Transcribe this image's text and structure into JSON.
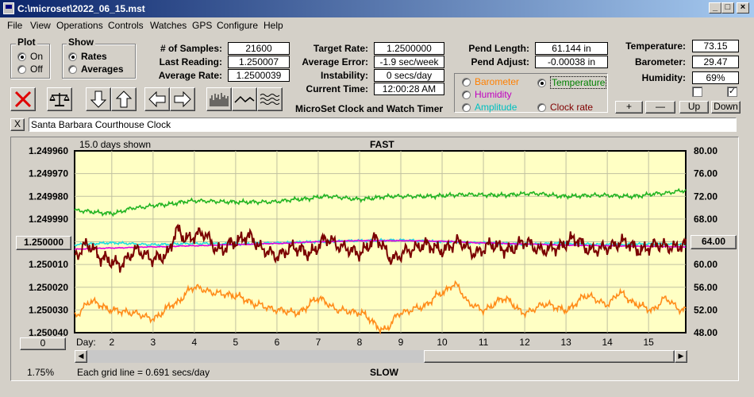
{
  "window": {
    "title": "C:\\microset\\2022_06_15.mst"
  },
  "menu": [
    "File",
    "View",
    "Operations",
    "Controls",
    "Watches",
    "GPS",
    "Configure",
    "Help"
  ],
  "plot_group": {
    "title": "Plot",
    "on": "On",
    "off": "Off",
    "selected": "On"
  },
  "show_group": {
    "title": "Show",
    "rates": "Rates",
    "averages": "Averages",
    "selected": "Rates"
  },
  "stats": {
    "samples_label": "# of Samples:",
    "samples": "21600",
    "last_reading_label": "Last Reading:",
    "last_reading": "1.250007",
    "average_rate_label": "Average Rate:",
    "average_rate": "1.2500039",
    "target_rate_label": "Target Rate:",
    "target_rate": "1.2500000",
    "average_error_label": "Average Error:",
    "average_error": "-1.9 sec/week",
    "instability_label": "Instability:",
    "instability": "0 secs/day",
    "current_time_label": "Current Time:",
    "current_time": "12:00:28 AM",
    "pend_length_label": "Pend Length:",
    "pend_length": "61.144 in",
    "pend_adjust_label": "Pend Adjust:",
    "pend_adjust": "-0.00038 in",
    "temperature_label": "Temperature:",
    "temperature": "73.15",
    "barometer_label": "Barometer:",
    "barometer": "29.47",
    "humidity_label": "Humidity:",
    "humidity": "69%"
  },
  "app_name": "MicroSet Clock and Watch Timer",
  "overlay": {
    "barometer": "Barometer",
    "temperature": "Temperature",
    "humidity": "Humidity",
    "amplitude": "Amplitude",
    "clock_rate": "Clock rate",
    "selected": "Temperature",
    "colors": {
      "barometer": "#ff8000",
      "temperature": "#008000",
      "humidity": "#c000c0",
      "amplitude": "#00c0c0",
      "clock_rate": "#800000"
    }
  },
  "scale_buttons": {
    "plus": "+",
    "minus": "—",
    "up": "Up",
    "down": "Down"
  },
  "checkboxes": {
    "left": false,
    "right": true
  },
  "close_label": "X",
  "description": "Santa Barbara Courthouse Clock",
  "plot": {
    "days_shown": "15.0 days shown",
    "top_label": "FAST",
    "bottom_label": "SLOW",
    "center_button": "1.250000",
    "right_button": "64.00",
    "left_bottom_button": "0",
    "percent": "1.75%",
    "grid_note": "Each grid line = 0.691 secs/day",
    "day_label": "Day:"
  },
  "chart_data": {
    "type": "line",
    "x_range_days": [
      1.1,
      15.9
    ],
    "left_axis": {
      "ticks": [
        "1.249960",
        "1.249970",
        "1.249980",
        "1.249990",
        "1.250000",
        "1.250010",
        "1.250020",
        "1.250030",
        "1.250040"
      ],
      "range": [
        1.24996,
        1.25004
      ]
    },
    "right_axis": {
      "ticks": [
        "80.00",
        "76.00",
        "72.00",
        "68.00",
        "64.00",
        "60.00",
        "56.00",
        "52.00",
        "48.00"
      ],
      "range": [
        48,
        80
      ]
    },
    "x_ticks": [
      "2",
      "3",
      "4",
      "5",
      "6",
      "7",
      "8",
      "9",
      "10",
      "11",
      "12",
      "13",
      "14",
      "15"
    ],
    "series": [
      {
        "key": "temperature",
        "axis": "right",
        "color": "#22b422",
        "x": [
          1.1,
          2,
          2.6,
          3.2,
          4,
          5,
          5.8,
          6.6,
          7.2,
          8,
          8.8,
          9.6,
          10.6,
          11.4,
          12.2,
          13,
          13.8,
          14.6,
          15.3,
          15.9
        ],
        "values": [
          69.5,
          69,
          70,
          70.5,
          71.2,
          71,
          71,
          71.5,
          72,
          71.5,
          72,
          72,
          72.3,
          72.2,
          72.5,
          72,
          72.2,
          72,
          72.5,
          73
        ]
      },
      {
        "key": "barometer",
        "axis": "right",
        "color": "#ff8c1a",
        "x": [
          1.1,
          1.5,
          2,
          2.5,
          3,
          3.5,
          4,
          4.5,
          5,
          5.5,
          6,
          6.5,
          7,
          7.5,
          8,
          8.6,
          9,
          9.5,
          10,
          10.3,
          10.7,
          11,
          11.5,
          12,
          12.5,
          13,
          13.5,
          14,
          14.3,
          14.7,
          15.1,
          15.4,
          15.8
        ],
        "values": [
          51,
          53.5,
          52,
          51.5,
          50.5,
          53,
          56,
          55,
          54.5,
          53,
          52,
          51.5,
          54,
          52,
          51.5,
          48.5,
          51.5,
          52.5,
          55,
          56.5,
          53,
          52,
          54,
          51.5,
          53,
          52,
          54.5,
          53,
          55,
          53,
          52,
          54,
          52
        ]
      },
      {
        "key": "amplitude",
        "axis": "right",
        "color": "#20e0e0",
        "x": [
          1.1,
          2,
          3,
          4,
          5,
          6,
          7,
          8,
          9,
          10,
          11,
          12,
          13,
          14,
          15,
          15.9
        ],
        "values": [
          63.5,
          63.8,
          63.5,
          63.7,
          63.6,
          63.8,
          64,
          64.2,
          64.3,
          64,
          63.8,
          63.6,
          63.7,
          63.5,
          63.6,
          63.5
        ]
      },
      {
        "key": "humidity",
        "axis": "right",
        "color": "#e000e0",
        "x": [
          1.1,
          2,
          3,
          4,
          5,
          6,
          7,
          8,
          9,
          10,
          11,
          12,
          13,
          14,
          15,
          15.9
        ],
        "values": [
          62.7,
          62.9,
          63.1,
          63.3,
          63.5,
          63.7,
          64,
          64.2,
          64.2,
          64.1,
          63.8,
          63.6,
          63.4,
          63.3,
          63.2,
          63.1
        ]
      },
      {
        "key": "clock_rate",
        "axis": "right",
        "color": "#7a0000",
        "x": [
          1.1,
          1.4,
          1.8,
          2.2,
          2.6,
          3,
          3.3,
          3.6,
          3.8,
          4.2,
          4.6,
          5,
          5.3,
          5.7,
          6,
          6.4,
          6.8,
          7.2,
          7.6,
          8,
          8.4,
          8.8,
          9.2,
          9.6,
          10,
          10.4,
          10.8,
          11.2,
          11.6,
          12,
          12.4,
          12.8,
          13.2,
          13.6,
          14,
          14.4,
          14.8,
          15.2,
          15.6,
          15.9
        ],
        "values": [
          61.5,
          63.5,
          61,
          60,
          62.5,
          61,
          61.5,
          66,
          64.5,
          65.5,
          62.5,
          64,
          65,
          62.5,
          61.5,
          63,
          62,
          64.5,
          63,
          62,
          64.5,
          61,
          62.5,
          63.5,
          62.5,
          64,
          62,
          63.5,
          62.5,
          64,
          62.5,
          63,
          64.5,
          62.5,
          63,
          64,
          62.5,
          63.5,
          63,
          63.5
        ]
      }
    ]
  }
}
